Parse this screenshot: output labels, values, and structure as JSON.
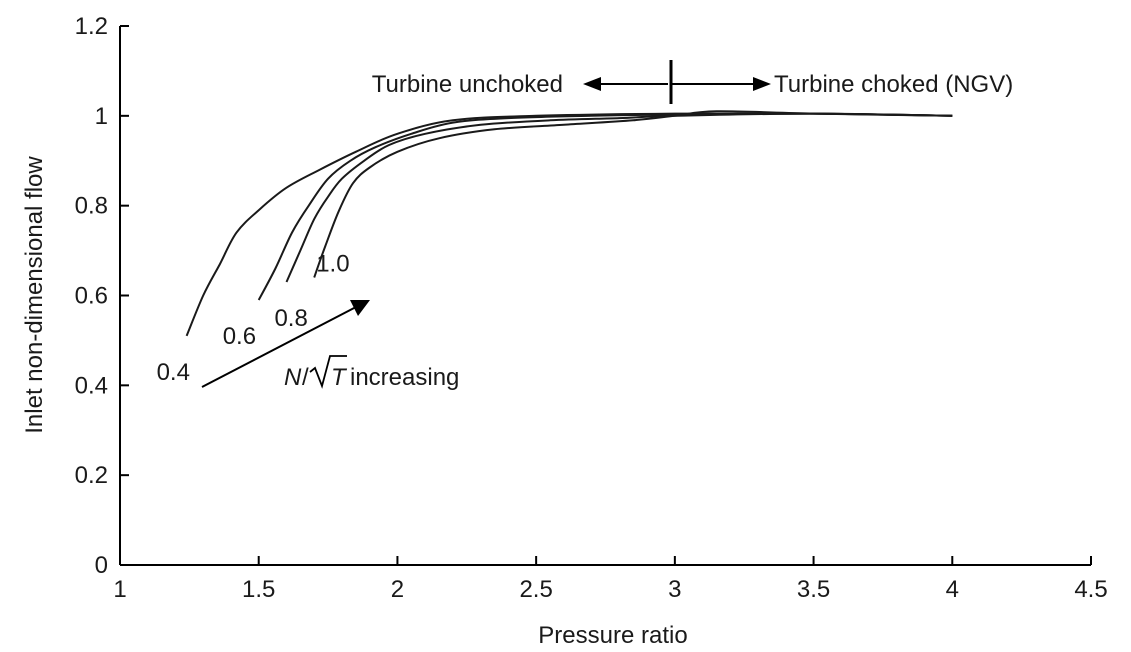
{
  "chart_data": {
    "type": "line",
    "title": "",
    "xlabel": "Pressure ratio",
    "ylabel": "Inlet non-dimensional flow",
    "xlim": [
      1,
      4.5
    ],
    "ylim": [
      0,
      1.2
    ],
    "x_ticks": [
      "1",
      "1.5",
      "2",
      "2.5",
      "3",
      "3.5",
      "4",
      "4.5"
    ],
    "y_ticks": [
      "0",
      "0.2",
      "0.4",
      "0.6",
      "0.8",
      "1",
      "1.2"
    ],
    "grid": false,
    "series": [
      {
        "name": "0.4",
        "x": [
          1.24,
          1.3,
          1.36,
          1.42,
          1.5,
          1.6,
          1.72,
          1.85,
          2.0,
          2.2,
          2.5,
          3.0,
          3.5,
          4.0
        ],
        "y": [
          0.51,
          0.6,
          0.67,
          0.74,
          0.79,
          0.84,
          0.88,
          0.92,
          0.96,
          0.99,
          1.0,
          1.005,
          1.005,
          1.0
        ]
      },
      {
        "name": "0.6",
        "x": [
          1.5,
          1.56,
          1.62,
          1.68,
          1.75,
          1.83,
          1.92,
          2.05,
          2.2,
          2.4,
          2.7,
          3.0,
          3.5,
          4.0
        ],
        "y": [
          0.59,
          0.66,
          0.74,
          0.8,
          0.86,
          0.9,
          0.93,
          0.96,
          0.985,
          0.995,
          1.0,
          1.003,
          1.005,
          1.0
        ]
      },
      {
        "name": "0.8",
        "x": [
          1.6,
          1.65,
          1.7,
          1.75,
          1.8,
          1.88,
          1.97,
          2.1,
          2.3,
          2.55,
          2.8,
          3.0,
          3.5,
          4.0
        ],
        "y": [
          0.63,
          0.7,
          0.77,
          0.82,
          0.86,
          0.9,
          0.935,
          0.96,
          0.98,
          0.99,
          0.995,
          1.0,
          1.005,
          1.0
        ]
      },
      {
        "name": "1.0",
        "x": [
          1.7,
          1.74,
          1.79,
          1.84,
          1.9,
          2.0,
          2.15,
          2.35,
          2.6,
          2.85,
          3.0,
          3.15,
          3.5,
          4.0
        ],
        "y": [
          0.64,
          0.71,
          0.79,
          0.85,
          0.885,
          0.92,
          0.95,
          0.97,
          0.98,
          0.99,
          1.0,
          1.01,
          1.005,
          1.0
        ]
      }
    ],
    "annotations": {
      "unchoked": "Turbine unchoked",
      "choked": "Turbine choked (NGV)",
      "increasing_n": "N",
      "increasing_slash": "/",
      "increasing_t": "T",
      "increasing_word": "increasing"
    }
  }
}
